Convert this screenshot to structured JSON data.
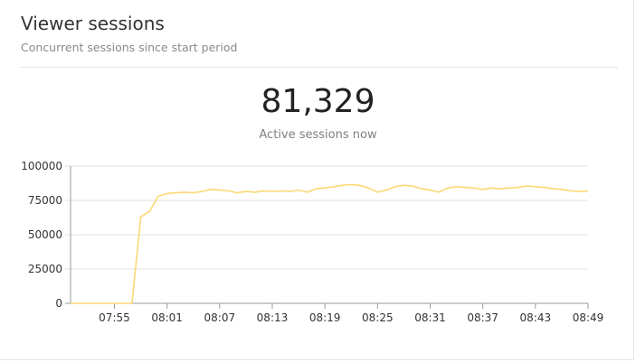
{
  "panel": {
    "title": "Viewer sessions",
    "subtitle": "Concurrent sessions since start period",
    "stat_value": "81,329",
    "stat_label": "Active sessions now"
  },
  "colors": {
    "line": "#fbd975",
    "grid": "#e0e0e0",
    "axis": "#9a9a9a"
  },
  "chart_data": {
    "type": "line",
    "title": "",
    "xlabel": "",
    "ylabel": "",
    "grid": true,
    "ylim": [
      0,
      100000
    ],
    "yticks": [
      0,
      25000,
      50000,
      75000,
      100000
    ],
    "xlim": [
      "07:50",
      "08:49"
    ],
    "xticks": [
      "07:55",
      "08:01",
      "08:07",
      "08:13",
      "08:19",
      "08:25",
      "08:31",
      "08:37",
      "08:43",
      "08:49"
    ],
    "series": [
      {
        "x": [
          "07:50",
          "07:52",
          "07:54",
          "07:56",
          "07:57",
          "07:58",
          "07:59",
          "08:00",
          "08:01",
          "08:02",
          "08:03",
          "08:04",
          "08:05",
          "08:06",
          "08:07",
          "08:08",
          "08:09",
          "08:10",
          "08:11",
          "08:12",
          "08:13",
          "08:14",
          "08:15",
          "08:16",
          "08:17",
          "08:18",
          "08:19",
          "08:20",
          "08:21",
          "08:22",
          "08:23",
          "08:24",
          "08:25",
          "08:26",
          "08:27",
          "08:28",
          "08:29",
          "08:30",
          "08:31",
          "08:32",
          "08:33",
          "08:34",
          "08:35",
          "08:36",
          "08:37",
          "08:38",
          "08:39",
          "08:40",
          "08:41",
          "08:42",
          "08:43",
          "08:44",
          "08:45",
          "08:46",
          "08:47",
          "08:48",
          "08:49"
        ],
        "values": [
          0,
          0,
          0,
          0,
          0,
          63000,
          67000,
          78000,
          80000,
          80500,
          81000,
          80500,
          81500,
          83000,
          82500,
          82000,
          80500,
          81500,
          81000,
          82000,
          81500,
          82000,
          81500,
          82500,
          81000,
          83500,
          84000,
          85000,
          86000,
          86500,
          86000,
          84000,
          81000,
          82500,
          85000,
          86000,
          85500,
          83500,
          82500,
          81000,
          84000,
          85000,
          84500,
          84000,
          83000,
          84000,
          83500,
          84000,
          84500,
          85500,
          85000,
          84500,
          83500,
          83000,
          82000,
          81500,
          82000
        ]
      }
    ]
  }
}
